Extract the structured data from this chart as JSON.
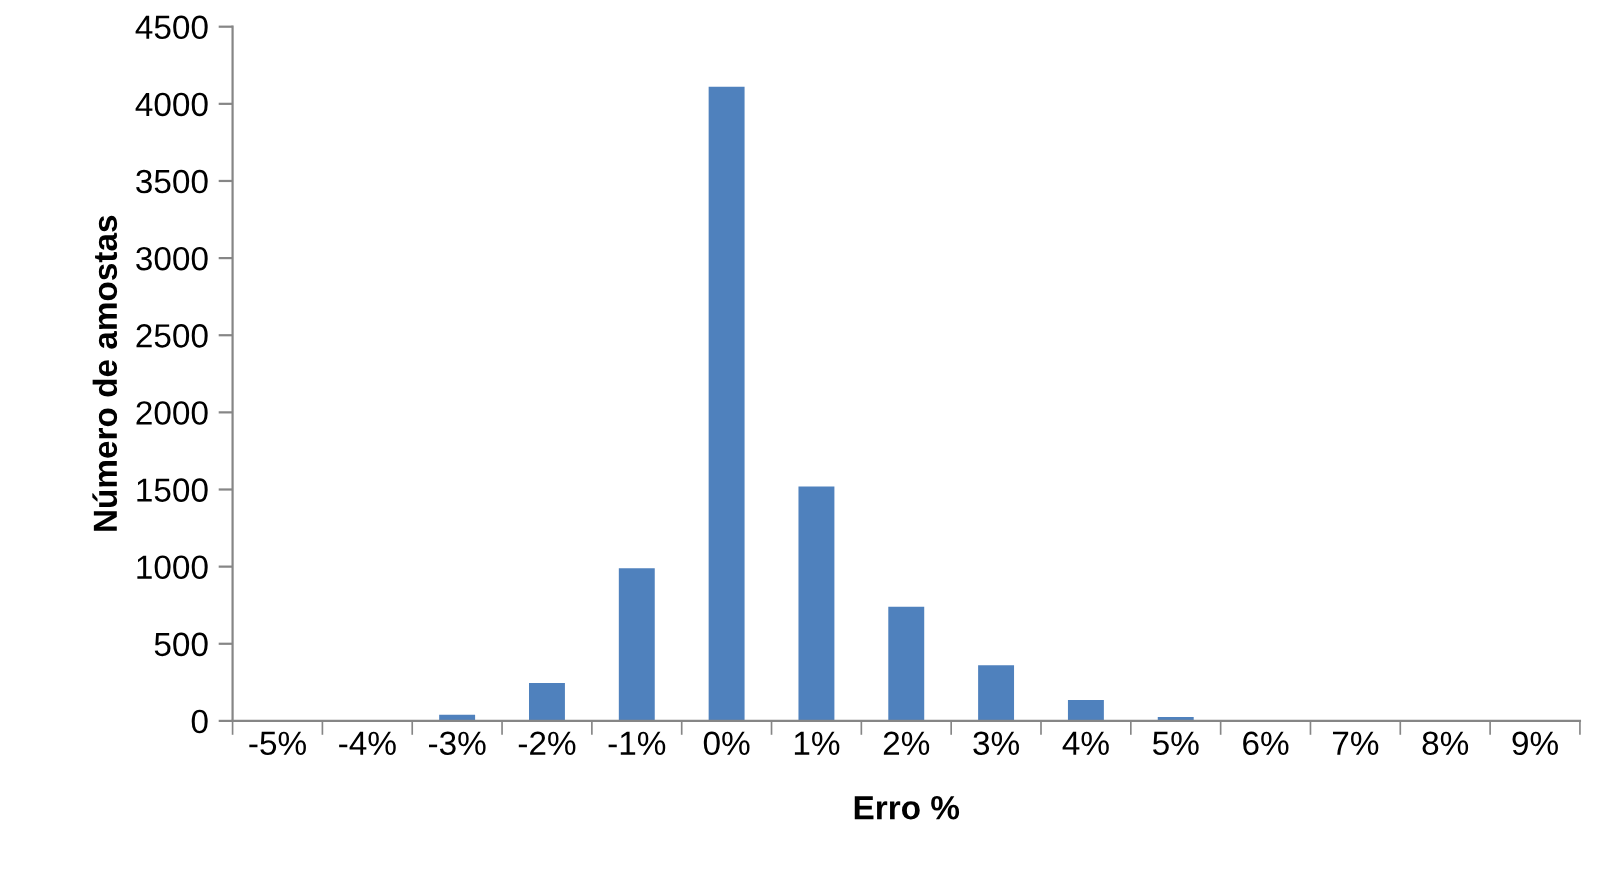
{
  "chart_data": {
    "type": "bar",
    "xlabel": "Erro %",
    "ylabel": "Número de amostas",
    "categories": [
      "-5%",
      "-4%",
      "-3%",
      "-2%",
      "-1%",
      "0%",
      "1%",
      "2%",
      "3%",
      "4%",
      "5%",
      "6%",
      "7%",
      "8%",
      "9%"
    ],
    "values": [
      0,
      0,
      40,
      245,
      990,
      4110,
      1520,
      740,
      360,
      135,
      25,
      0,
      0,
      0,
      0
    ],
    "color": "#4f81bd",
    "ylim": [
      0,
      4500
    ],
    "yticks": [
      0,
      500,
      1000,
      1500,
      2000,
      2500,
      3000,
      3500,
      4000,
      4500
    ],
    "grid": false,
    "legend": false
  }
}
